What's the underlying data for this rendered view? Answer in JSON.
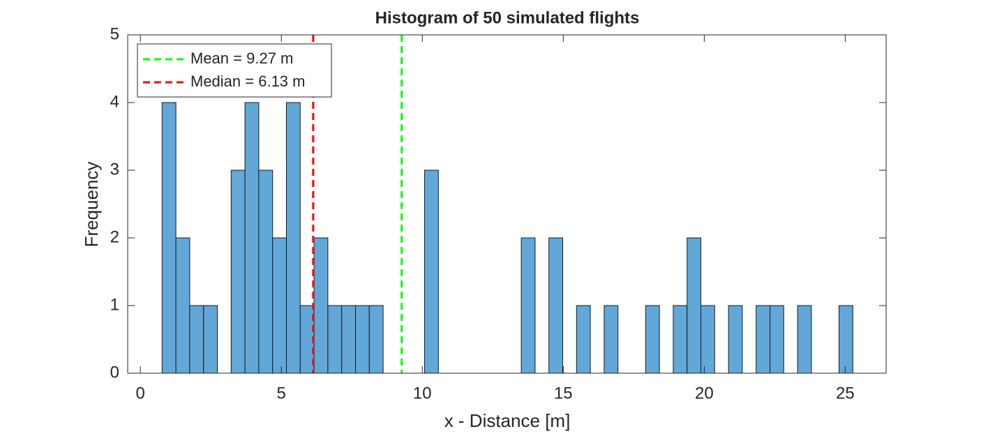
{
  "chart_data": {
    "type": "histogram",
    "title": "Histogram of 50 simulated flights",
    "xlabel": "x - Distance [m]",
    "ylabel": "Frequency",
    "bins": [
      0.77,
      1.26,
      1.75,
      2.24,
      2.73,
      3.22,
      3.71,
      4.2,
      4.69,
      5.18,
      5.67,
      6.16,
      6.65,
      7.14,
      7.63,
      8.12,
      8.61,
      9.1,
      9.59,
      10.08,
      10.57,
      11.06,
      11.55,
      12.04,
      12.53,
      13.02,
      13.51,
      14,
      14.49,
      14.98,
      15.47,
      15.96,
      16.45,
      16.94,
      17.43,
      17.92,
      18.41,
      18.9,
      19.39,
      19.88,
      20.37,
      20.86,
      21.35,
      21.84,
      22.33,
      22.82,
      23.31,
      23.8,
      24.29,
      24.78,
      25.27
    ],
    "values": [
      4,
      2,
      1,
      1,
      0,
      3,
      4,
      3,
      2,
      4,
      1,
      2,
      1,
      1,
      1,
      1,
      0,
      0,
      0,
      3,
      0,
      0,
      0,
      0,
      0,
      0,
      2,
      0,
      2,
      0,
      1,
      0,
      1,
      0,
      0,
      1,
      0,
      1,
      2,
      1,
      0,
      1,
      0,
      1,
      1,
      0,
      1,
      0,
      0,
      1
    ],
    "color": "#61a7d8",
    "vlines": [
      {
        "name": "Mean = 9.27 m",
        "value": 9.27,
        "color": "#00ff00"
      },
      {
        "name": "Median = 6.13 m",
        "value": 6.13,
        "color": "#ff0000"
      }
    ],
    "legend": "upper left",
    "xlim": [
      -0.45,
      26.45
    ],
    "ylim": [
      0,
      5
    ],
    "xticks": [
      0,
      5,
      10,
      15,
      20,
      25
    ],
    "yticks": [
      0,
      1,
      2,
      3,
      4,
      5
    ]
  }
}
